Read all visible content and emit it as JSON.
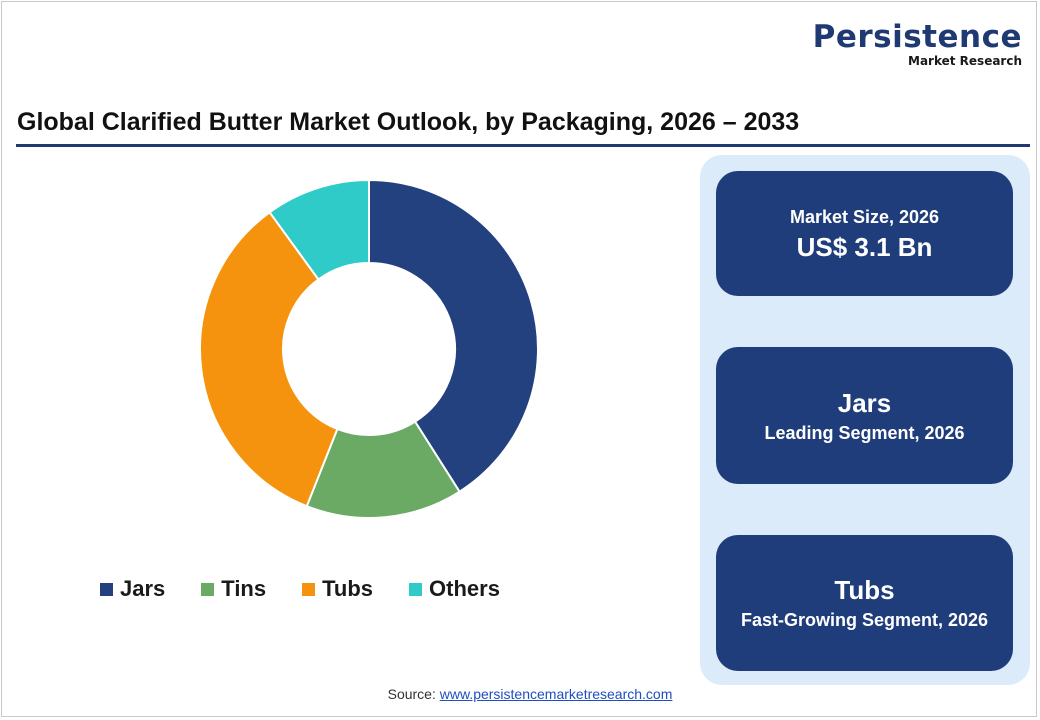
{
  "logo": {
    "main": "Persistence",
    "sub": "Market Research"
  },
  "title": "Global Clarified Butter Market Outlook, by Packaging, 2026 – 2033",
  "chart_data": {
    "type": "pie",
    "donut": true,
    "title": "Global Clarified Butter Market Outlook, by Packaging, 2026 – 2033",
    "categories": [
      "Jars",
      "Tins",
      "Tubs",
      "Others"
    ],
    "values": [
      41,
      15,
      34,
      10
    ],
    "colors": [
      "#23417f",
      "#6aaa64",
      "#f5930e",
      "#2ecbc9"
    ],
    "legend_position": "bottom"
  },
  "cards": [
    {
      "top": "Market Size, 2026",
      "bottom": "US$ 3.1 Bn"
    },
    {
      "top": "Jars",
      "bottom": "Leading Segment, 2026"
    },
    {
      "top": "Tubs",
      "bottom": "Fast-Growing Segment, 2026"
    }
  ],
  "source": {
    "label": "Source:",
    "link": "www.persistencemarketresearch.com"
  }
}
